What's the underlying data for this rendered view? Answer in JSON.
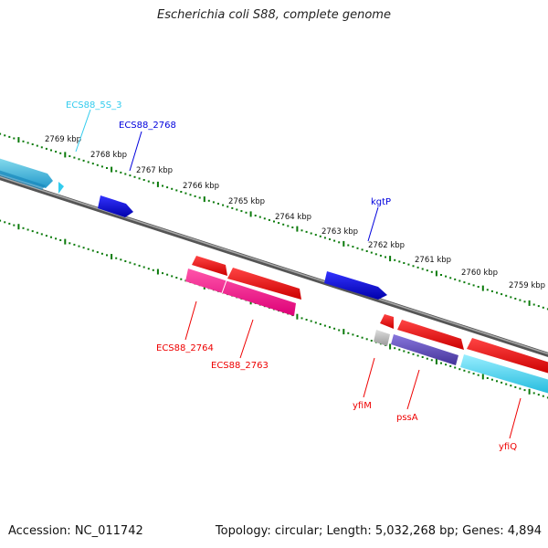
{
  "title": "Escherichia coli S88, complete genome",
  "footer": {
    "accession": "Accession: NC_011742",
    "summary": "Topology: circular; Length: 5,032,268 bp; Genes: 4,894"
  },
  "ruler_labels": [
    "2769 kbp",
    "2768 kbp",
    "2767 kbp",
    "2766 kbp",
    "2765 kbp",
    "2764 kbp",
    "2763 kbp",
    "2762 kbp",
    "2761 kbp",
    "2760 kbp",
    "2759 kbp"
  ],
  "gene_labels": {
    "ecs88_5s_3": "ECS88_5S_3",
    "ecs88_2768": "ECS88_2768",
    "kgtp": "kgtP",
    "ecs88_2764": "ECS88_2764",
    "ecs88_2763": "ECS88_2763",
    "yfim": "yfiM",
    "pssa": "pssA",
    "yfiq": "yfiQ"
  },
  "colors": {
    "tick_green": "#0a7a0a",
    "backbone": "#777777",
    "cyan": "#33ccee",
    "blue": "#0000dd",
    "red": "#ee0000",
    "pink": "#ee1188",
    "slate": "#6655bb",
    "gray": "#aaaaaa"
  }
}
